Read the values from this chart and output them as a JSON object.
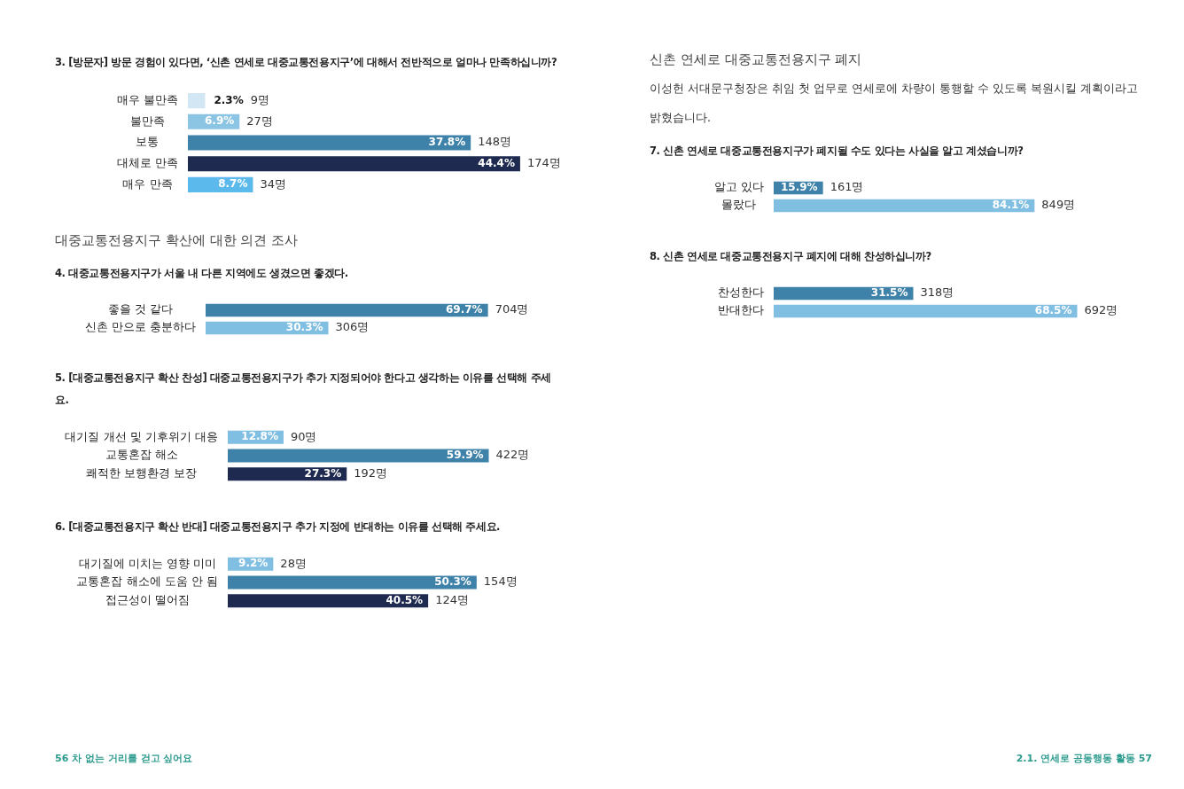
{
  "chart_data": [
    {
      "type": "bar",
      "orientation": "horizontal",
      "tick_labels": "y",
      "title": "3. [방문자] 방문 경험이 있다면, ‘신촌 연세로 대중교통전용지구’에 대해서 전반적으로 얼마나 만족하십니까?",
      "categories": [
        "매우 불만족",
        "불만족",
        "보통",
        "대체로 만족",
        "매우 만족"
      ],
      "values": [
        2.3,
        6.9,
        37.8,
        44.4,
        8.7
      ],
      "value_labels": [
        "2.3%",
        "6.9%",
        "37.8%",
        "44.4%",
        "8.7%"
      ],
      "colors": [
        "#d3e6f3",
        "#8cc4e4",
        "#3f82a9",
        "#1e2a4f",
        "#5cb9ec"
      ],
      "annotations": [
        "9명",
        "27명",
        "148명",
        "174명",
        "34명"
      ]
    },
    {
      "type": "other",
      "title": "대중교통전용지구 확산에 대한 의견 조사"
    },
    {
      "type": "bar",
      "orientation": "horizontal",
      "tick_labels": "y",
      "title": "4. 대중교통전용지구가 서울 내 다른 지역에도 생겼으면 좋겠다.",
      "categories": [
        "좋을 것 같다",
        "신촌 만으로 충분하다"
      ],
      "values": [
        69.7,
        30.3
      ],
      "value_labels": [
        "69.7%",
        "30.3%"
      ],
      "colors": [
        "#3f82a9",
        "#80bee2"
      ],
      "annotations": [
        "704명",
        "306명"
      ]
    },
    {
      "type": "bar",
      "orientation": "horizontal",
      "tick_labels": "y",
      "title": "5. [대중교통전용지구 확산 찬성] 대중교통전용지구가 추가 지정되어야 한다고 생각하는 이유를 선택해 주세요.",
      "categories": [
        "대기질 개선 및 기후위기 대응",
        "교통혼잡 해소",
        "쾌적한 보행환경 보장"
      ],
      "values": [
        12.8,
        59.9,
        27.3
      ],
      "value_labels": [
        "12.8%",
        "59.9%",
        "27.3%"
      ],
      "colors": [
        "#80bee2",
        "#3f82a9",
        "#1e2a4f"
      ],
      "annotations": [
        "90명",
        "422명",
        "192명"
      ]
    },
    {
      "type": "bar",
      "orientation": "horizontal",
      "tick_labels": "y",
      "title": "6. [대중교통전용지구 확산 반대] 대중교통전용지구 추가 지정에 반대하는 이유를 선택해 주세요.",
      "categories": [
        "대기질에 미치는 영향 미미",
        "교통혼잡 해소에 도움 안 됨",
        "접근성이 떨어짐"
      ],
      "values": [
        9.2,
        50.3,
        40.5
      ],
      "value_labels": [
        "9.2%",
        "50.3%",
        "40.5%"
      ],
      "colors": [
        "#80bee2",
        "#3f82a9",
        "#1e2a4f"
      ],
      "annotations": [
        "28명",
        "154명",
        "124명"
      ]
    },
    {
      "type": "other",
      "title": "신촌 연세로 대중교통전용지구 폐지",
      "annotations": [
        "이성헌 서대문구청장은 취임 첫 업무로 연세로에 차량이 통행할 수 있도록 복원시킬 계획이라고 밝혔습니다."
      ]
    },
    {
      "type": "bar",
      "orientation": "horizontal",
      "tick_labels": "y",
      "title": "7. 신촌 연세로 대중교통전용지구가 폐지될 수도 있다는 사실을 알고 계셨습니까?",
      "categories": [
        "알고 있다",
        "몰랐다"
      ],
      "values": [
        15.9,
        84.1
      ],
      "value_labels": [
        "15.9%",
        "84.1%"
      ],
      "colors": [
        "#3f82a9",
        "#80bee2"
      ],
      "annotations": [
        "161명",
        "849명"
      ]
    },
    {
      "type": "bar",
      "orientation": "horizontal",
      "tick_labels": "y",
      "title": "8. 신촌 연세로 대중교통전용지구 폐지에 대해 찬성하십니까?",
      "categories": [
        "찬성한다",
        "반대한다"
      ],
      "values": [
        31.5,
        68.5
      ],
      "value_labels": [
        "31.5%",
        "68.5%"
      ],
      "colors": [
        "#3f82a9",
        "#80bee2"
      ],
      "annotations": [
        "318명",
        "692명"
      ]
    },
    {
      "type": "other",
      "annotations": [
        "56 차 없는 거리를 걷고 싶어요"
      ]
    },
    {
      "type": "other",
      "annotations": [
        "2.1. 연세로 공동행동 활동 57"
      ]
    }
  ]
}
